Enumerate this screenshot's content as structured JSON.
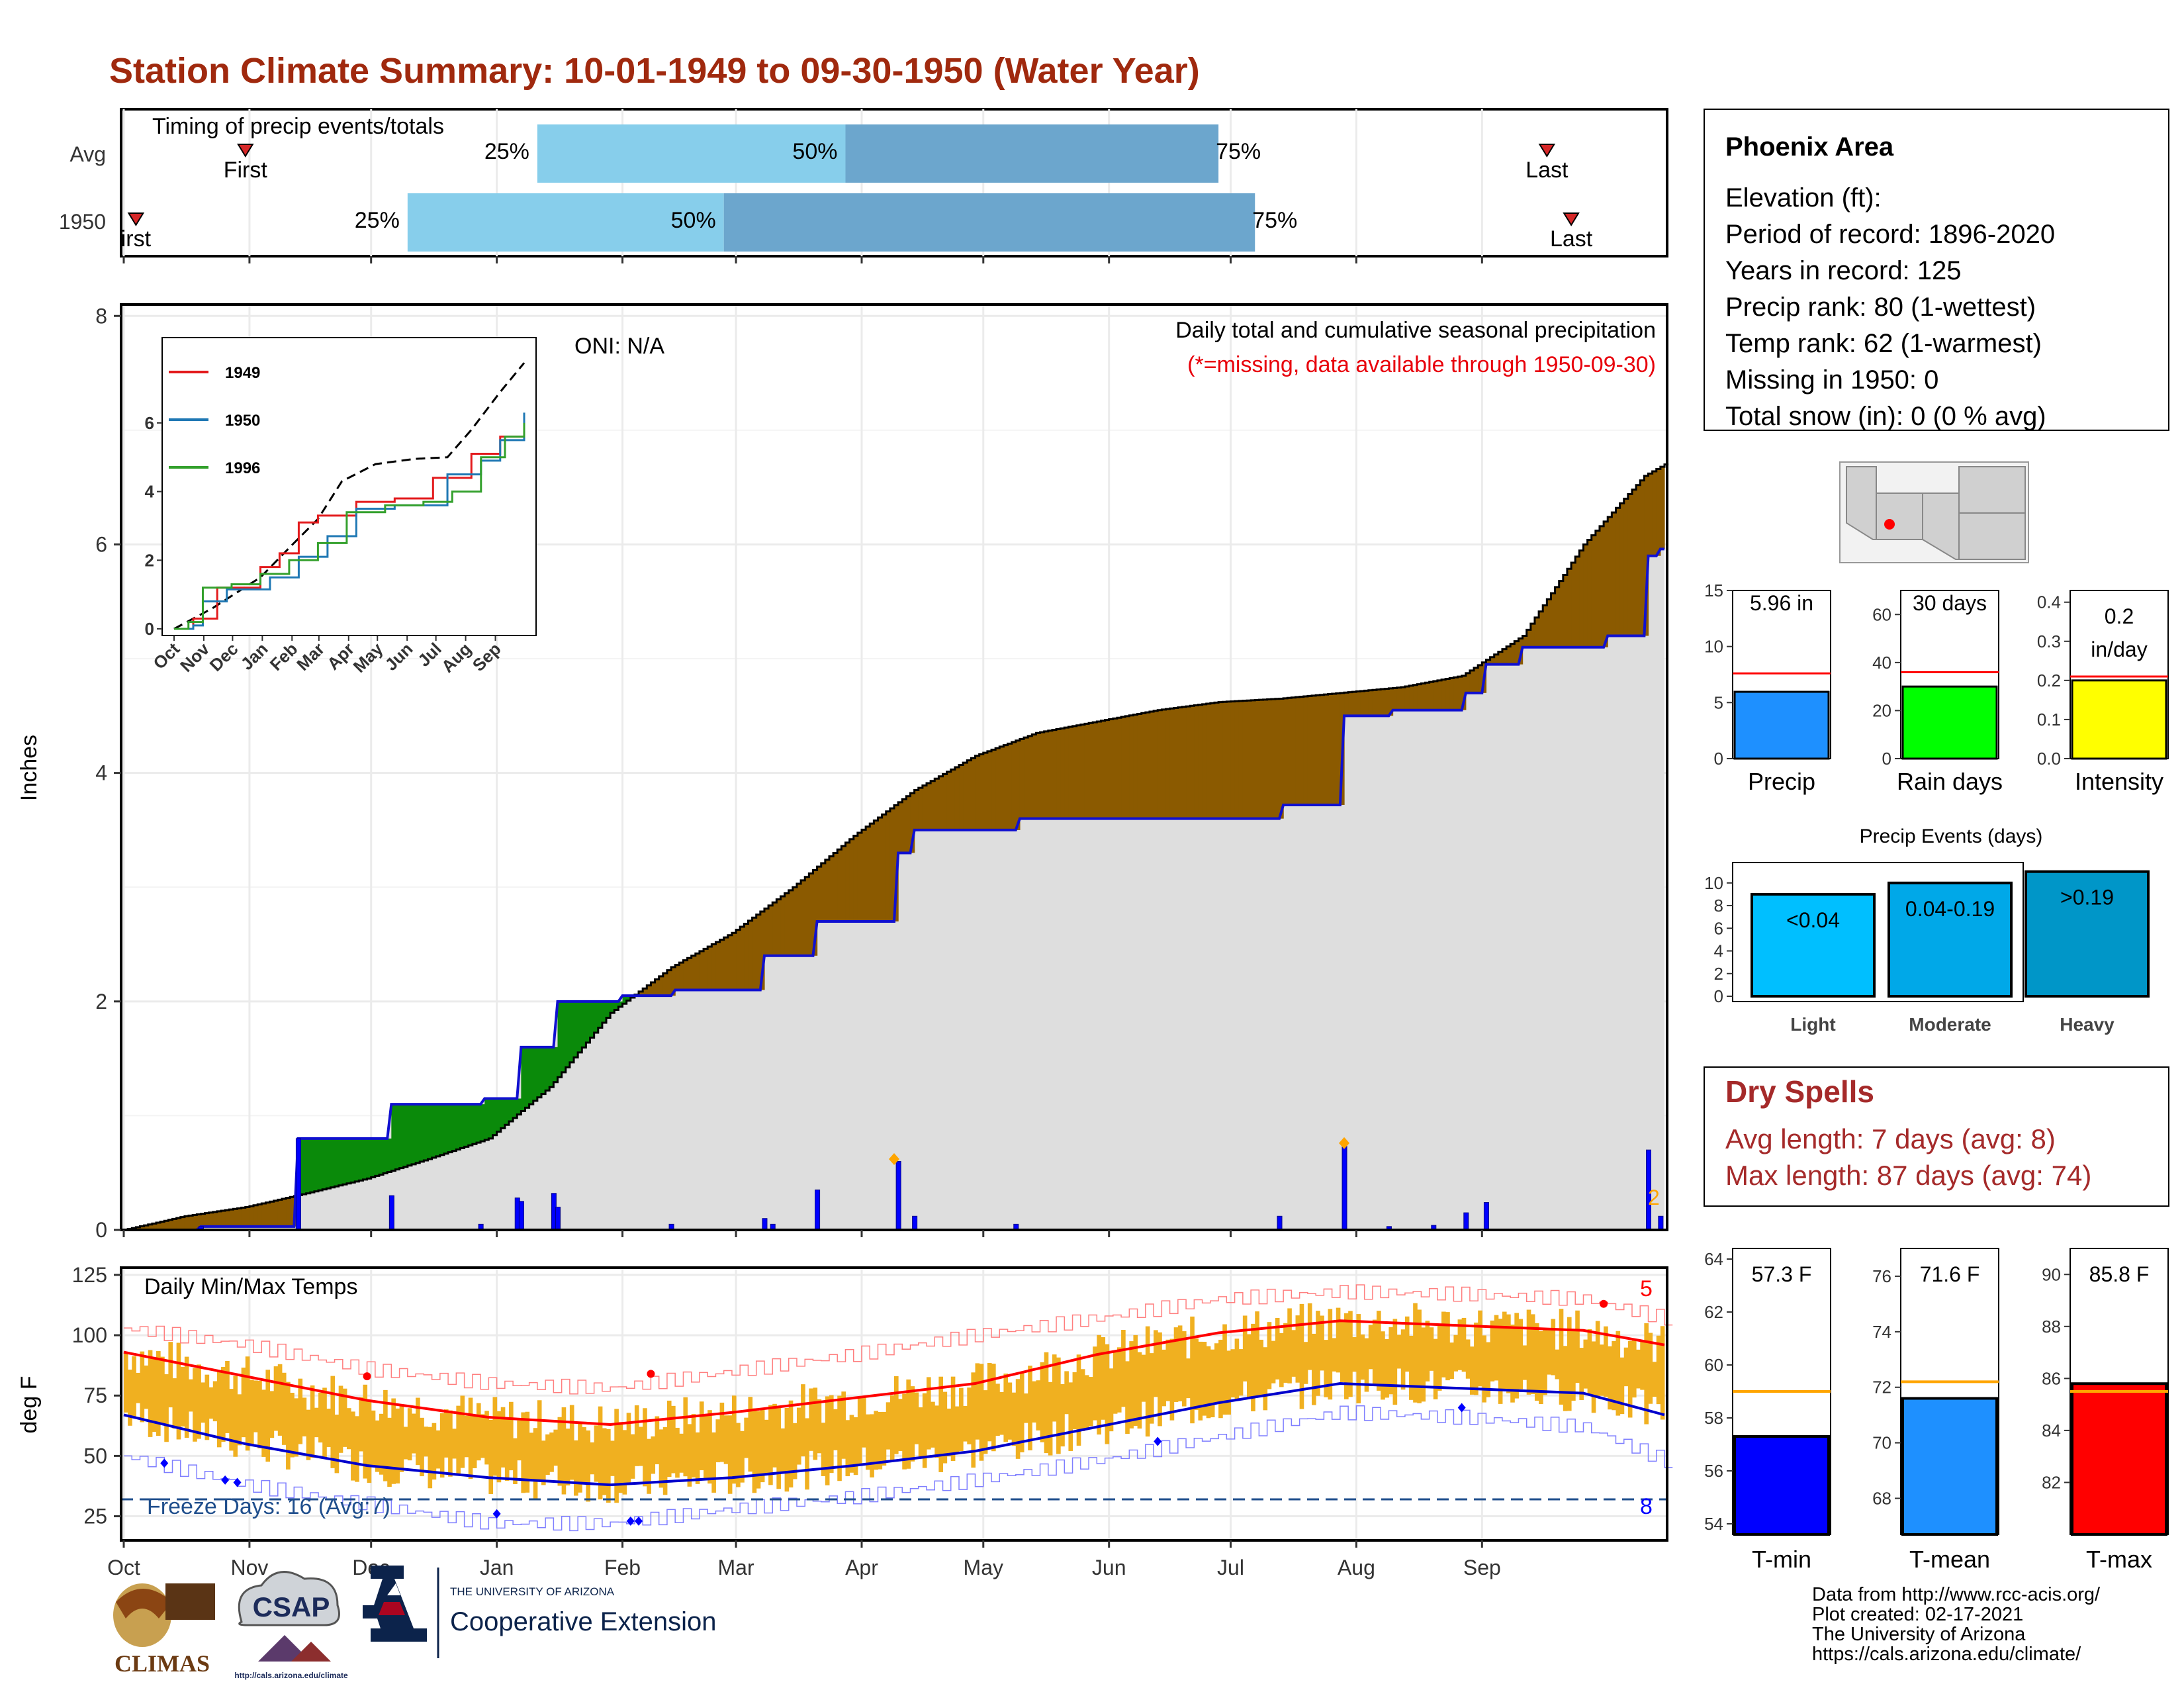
{
  "title": "Station Climate Summary: 10-01-1949 to 09-30-1950 (Water Year)",
  "timing": {
    "label": "Timing of precip events/totals",
    "rows": [
      "Avg",
      "1950"
    ],
    "first_label": "First",
    "first_label_1950": "irst",
    "last_label": "Last",
    "pct_labels": [
      "25%",
      "50%",
      "75%"
    ],
    "avg_days": {
      "first": 30,
      "p25": 102,
      "p50": 178,
      "p75": 270,
      "last": 351
    },
    "y1950_days": {
      "first": 3,
      "p25": 70,
      "p50": 148,
      "p75": 279,
      "last": 357
    }
  },
  "months": [
    "Oct",
    "Nov",
    "Dec",
    "Jan",
    "Feb",
    "Mar",
    "Apr",
    "May",
    "Jun",
    "Jul",
    "Aug",
    "Sep"
  ],
  "precip_panel": {
    "ylabel": "Inches",
    "oni": "ONI: N/A",
    "caption1": "Daily total and cumulative seasonal precipitation",
    "caption2": "(*=missing, data available through 1950-09-30)",
    "count_label": "2",
    "inset": {
      "legend": [
        {
          "name": "1949",
          "color": "#e31a1c"
        },
        {
          "name": "1950",
          "color": "#1f78b4"
        },
        {
          "name": "1996",
          "color": "#33a02c"
        }
      ]
    }
  },
  "temp_panel": {
    "label": "Daily Min/Max Temps",
    "ylabel": "deg F",
    "freeze_label": "Freeze Days: 16 (Avg:7)",
    "count_hot": "5",
    "count_cold": "8"
  },
  "station_box": {
    "name": "Phoenix Area",
    "lines": [
      "Elevation (ft):",
      "Period of record: 1896-2020",
      "Years in record: 125",
      "Precip rank: 80 (1-wettest)",
      "Temp rank: 62 (1-warmest)",
      "Missing in 1950: 0",
      "Total snow (in): 0 (0 % avg)"
    ]
  },
  "mini_bars": [
    {
      "label": "Precip",
      "value_text": "5.96 in",
      "value": 5.96,
      "avg": 7.6,
      "ymax": 15,
      "ticks": [
        "0",
        "5",
        "10",
        "15"
      ],
      "color": "#1e90ff"
    },
    {
      "label": "Rain days",
      "value_text": "30 days",
      "value": 30,
      "avg": 36,
      "ymax": 70,
      "ticks": [
        "0",
        "20",
        "40",
        "60"
      ],
      "color": "#00ff00"
    },
    {
      "label": "Intensity",
      "value_text": "0.2 in/day",
      "value": 0.2,
      "avg": 0.21,
      "ymax": 0.43,
      "ticks": [
        "0.0",
        "0.1",
        "0.2",
        "0.3",
        "0.4"
      ],
      "color": "#ffff00"
    }
  ],
  "events": {
    "title": "Precip Events (days)",
    "ticks": [
      "0",
      "2",
      "4",
      "6",
      "8",
      "10"
    ],
    "bars": [
      {
        "label": "Light",
        "range": "<0.04",
        "value": 9,
        "color": "#00bfff"
      },
      {
        "label": "Moderate",
        "range": "0.04-0.19",
        "value": 10,
        "color": "#00a8e8"
      },
      {
        "label": "Heavy",
        "range": ">0.19",
        "value": 11,
        "color": "#0096c8"
      }
    ]
  },
  "dry_spells": {
    "title": "Dry Spells",
    "avg_line": "Avg length: 7 days (avg: 8)",
    "max_line": "Max length: 87 days (avg: 74)"
  },
  "temp_bars": [
    {
      "label": "T-min",
      "value_text": "57.3 F",
      "value": 57.3,
      "avg": 59.0,
      "ymin": 53.6,
      "ymax": 64.4,
      "ticks": [
        "54",
        "56",
        "58",
        "60",
        "62",
        "64"
      ],
      "color": "#0000ff"
    },
    {
      "label": "T-mean",
      "value_text": "71.6 F",
      "value": 71.6,
      "avg": 72.2,
      "ymin": 66.7,
      "ymax": 77.0,
      "ticks": [
        "68",
        "70",
        "72",
        "74",
        "76"
      ],
      "color": "#1e90ff"
    },
    {
      "label": "T-max",
      "value_text": "85.8 F",
      "value": 85.8,
      "avg": 85.5,
      "ymin": 80.0,
      "ymax": 91.0,
      "ticks": [
        "82",
        "84",
        "86",
        "88",
        "90"
      ],
      "color": "#ff0000"
    }
  ],
  "credits": [
    "Data from http://www.rcc-acis.org/",
    "Plot created: 02-17-2021",
    "The University of Arizona",
    "https://cals.arizona.edu/climate/"
  ],
  "logos": {
    "climas": "CLIMAS",
    "csap": "CSAP",
    "csap_url": "http://cals.arizona.edu/climate",
    "ua_top": "THE UNIVERSITY OF ARIZONA",
    "ua_bottom": "Cooperative Extension"
  },
  "chart_data": [
    {
      "type": "area",
      "title": "Daily total and cumulative seasonal precipitation",
      "ylabel": "Inches",
      "ylim": [
        0,
        8.1
      ],
      "grid": true,
      "x_unit": "day of water year (Oct 1 = 0)",
      "avg_cumulative": [
        [
          0,
          0
        ],
        [
          15,
          0.12
        ],
        [
          30,
          0.2
        ],
        [
          45,
          0.32
        ],
        [
          60,
          0.45
        ],
        [
          75,
          0.62
        ],
        [
          90,
          0.8
        ],
        [
          105,
          1.25
        ],
        [
          120,
          1.9
        ],
        [
          135,
          2.3
        ],
        [
          150,
          2.6
        ],
        [
          165,
          3.0
        ],
        [
          180,
          3.45
        ],
        [
          195,
          3.85
        ],
        [
          210,
          4.15
        ],
        [
          225,
          4.35
        ],
        [
          240,
          4.45
        ],
        [
          255,
          4.55
        ],
        [
          270,
          4.62
        ],
        [
          285,
          4.65
        ],
        [
          300,
          4.7
        ],
        [
          315,
          4.75
        ],
        [
          330,
          4.85
        ],
        [
          345,
          5.2
        ],
        [
          360,
          6.0
        ],
        [
          375,
          6.6
        ],
        [
          390,
          6.9
        ],
        [
          405,
          7.15
        ],
        [
          420,
          7.3
        ],
        [
          425,
          7.4
        ]
      ],
      "series": [
        {
          "name": "1950",
          "cumulative": [
            [
              0,
              0
            ],
            [
              18,
              0
            ],
            [
              19,
              0.03
            ],
            [
              42,
              0.03
            ],
            [
              43,
              0.8
            ],
            [
              65,
              0.8
            ],
            [
              66,
              1.1
            ],
            [
              88,
              1.1
            ],
            [
              89,
              1.15
            ],
            [
              97,
              1.15
            ],
            [
              98,
              1.6
            ],
            [
              106,
              1.6
            ],
            [
              107,
              2.0
            ],
            [
              122,
              2.0
            ],
            [
              123,
              2.05
            ],
            [
              135,
              2.05
            ],
            [
              136,
              2.1
            ],
            [
              157,
              2.1
            ],
            [
              158,
              2.4
            ],
            [
              170,
              2.4
            ],
            [
              171,
              2.7
            ],
            [
              190,
              2.7
            ],
            [
              191,
              3.3
            ],
            [
              194,
              3.3
            ],
            [
              195,
              3.5
            ],
            [
              220,
              3.5
            ],
            [
              221,
              3.6
            ],
            [
              285,
              3.6
            ],
            [
              286,
              3.72
            ],
            [
              300,
              3.72
            ],
            [
              301,
              4.5
            ],
            [
              312,
              4.5
            ],
            [
              313,
              4.55
            ],
            [
              330,
              4.55
            ],
            [
              331,
              4.7
            ],
            [
              335,
              4.7
            ],
            [
              336,
              4.95
            ],
            [
              344,
              4.95
            ],
            [
              345,
              5.1
            ],
            [
              365,
              5.1
            ],
            [
              366,
              5.2
            ],
            [
              375,
              5.2
            ],
            [
              376,
              5.9
            ],
            [
              378,
              5.9
            ],
            [
              379,
              5.96
            ],
            [
              380,
              5.96
            ]
          ]
        }
      ],
      "daily_bars": [
        [
          19,
          0.03
        ],
        [
          43,
          0.8
        ],
        [
          66,
          0.3
        ],
        [
          88,
          0.05
        ],
        [
          97,
          0.28
        ],
        [
          98,
          0.25
        ],
        [
          106,
          0.32
        ],
        [
          107,
          0.2
        ],
        [
          135,
          0.05
        ],
        [
          158,
          0.1
        ],
        [
          160,
          0.05
        ],
        [
          171,
          0.35
        ],
        [
          191,
          0.6
        ],
        [
          195,
          0.12
        ],
        [
          220,
          0.05
        ],
        [
          285,
          0.12
        ],
        [
          301,
          0.78
        ],
        [
          312,
          0.03
        ],
        [
          323,
          0.04
        ],
        [
          331,
          0.15
        ],
        [
          336,
          0.24
        ],
        [
          376,
          0.7
        ],
        [
          379,
          0.12
        ]
      ],
      "missing_markers": [
        [
          190,
          0.62
        ],
        [
          301,
          0.76
        ]
      ]
    },
    {
      "type": "line",
      "title": "Daily Min/Max Temps",
      "ylabel": "deg F",
      "ylim": [
        15,
        128
      ],
      "freeze_line": 32,
      "series": [
        {
          "name": "avg max",
          "values": [
            [
              0,
              93
            ],
            [
              30,
              83
            ],
            [
              60,
              73
            ],
            [
              90,
              66
            ],
            [
              120,
              63
            ],
            [
              150,
              68
            ],
            [
              180,
              74
            ],
            [
              210,
              80
            ],
            [
              240,
              92
            ],
            [
              270,
              101
            ],
            [
              300,
              106
            ],
            [
              330,
              104
            ],
            [
              360,
              102
            ],
            [
              380,
              96
            ]
          ]
        },
        {
          "name": "avg min",
          "values": [
            [
              0,
              67
            ],
            [
              30,
              55
            ],
            [
              60,
              46
            ],
            [
              90,
              41
            ],
            [
              120,
              38
            ],
            [
              150,
              41
            ],
            [
              180,
              46
            ],
            [
              210,
              52
            ],
            [
              240,
              62
            ],
            [
              270,
              72
            ],
            [
              300,
              80
            ],
            [
              330,
              78
            ],
            [
              360,
              76
            ],
            [
              380,
              67
            ]
          ]
        },
        {
          "name": "record max",
          "values": [
            [
              0,
              103
            ],
            [
              30,
              96
            ],
            [
              60,
              86
            ],
            [
              90,
              80
            ],
            [
              120,
              78
            ],
            [
              150,
              85
            ],
            [
              180,
              92
            ],
            [
              210,
              100
            ],
            [
              240,
              107
            ],
            [
              270,
              115
            ],
            [
              300,
              118
            ],
            [
              330,
              117
            ],
            [
              360,
              115
            ],
            [
              380,
              107
            ]
          ]
        },
        {
          "name": "record min",
          "values": [
            [
              0,
              50
            ],
            [
              30,
              38
            ],
            [
              60,
              30
            ],
            [
              90,
              22
            ],
            [
              120,
              22
            ],
            [
              150,
              28
            ],
            [
              180,
              33
            ],
            [
              210,
              40
            ],
            [
              240,
              48
            ],
            [
              270,
              58
            ],
            [
              300,
              68
            ],
            [
              330,
              66
            ],
            [
              360,
              62
            ],
            [
              380,
              48
            ]
          ]
        }
      ]
    }
  ]
}
